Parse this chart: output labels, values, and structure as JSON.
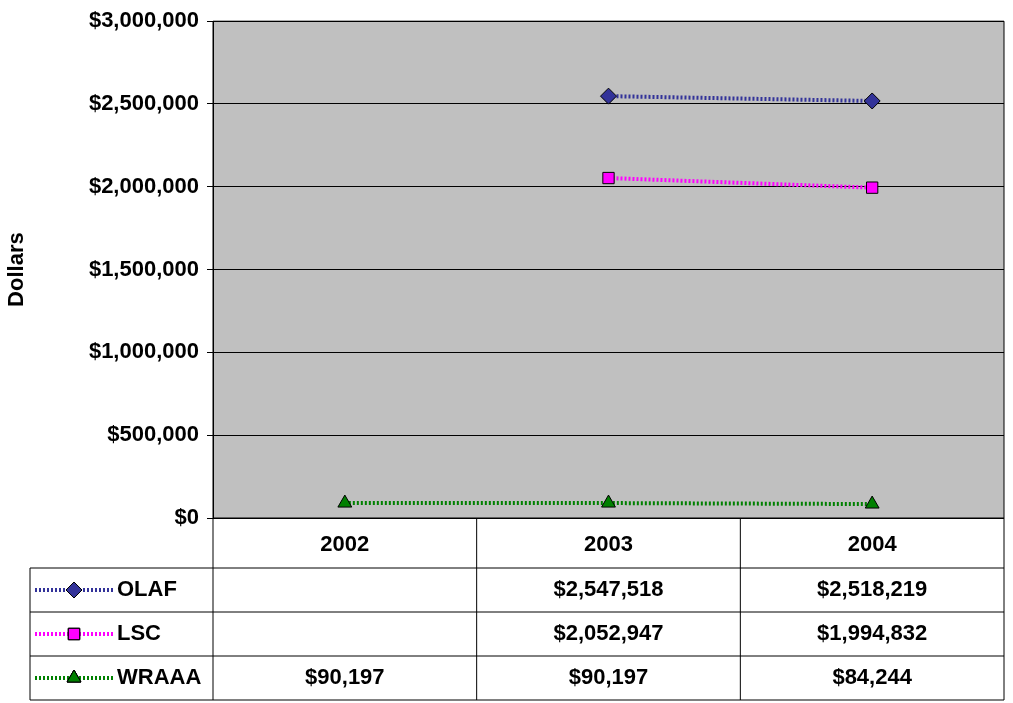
{
  "chart_data": {
    "type": "line",
    "ylabel": "Dollars",
    "categories": [
      "2002",
      "2003",
      "2004"
    ],
    "ylim": [
      0,
      3000000
    ],
    "yticks": [
      {
        "value": 0,
        "label": "$0"
      },
      {
        "value": 500000,
        "label": "$500,000"
      },
      {
        "value": 1000000,
        "label": "$1,000,000"
      },
      {
        "value": 1500000,
        "label": "$1,500,000"
      },
      {
        "value": 2000000,
        "label": "$2,000,000"
      },
      {
        "value": 2500000,
        "label": "$2,500,000"
      },
      {
        "value": 3000000,
        "label": "$3,000,000"
      }
    ],
    "grid": "y",
    "line_style": "dotted",
    "legend": "bottom left",
    "series": [
      {
        "name": "OLAF",
        "color": "#333399",
        "marker": "diamond",
        "values": [
          null,
          2547518,
          2518219
        ],
        "value_labels": [
          null,
          "$2,547,518",
          "$2,518,219"
        ]
      },
      {
        "name": "LSC",
        "color": "#ff00ff",
        "marker": "square",
        "values": [
          null,
          2052947,
          1994832
        ],
        "value_labels": [
          null,
          "$2,052,947",
          "$1,994,832"
        ]
      },
      {
        "name": "WRAAA",
        "color": "#008000",
        "marker": "triangle",
        "values": [
          90197,
          90197,
          84244
        ],
        "value_labels": [
          "$90,197",
          "$90,197",
          "$84,244"
        ]
      }
    ]
  }
}
